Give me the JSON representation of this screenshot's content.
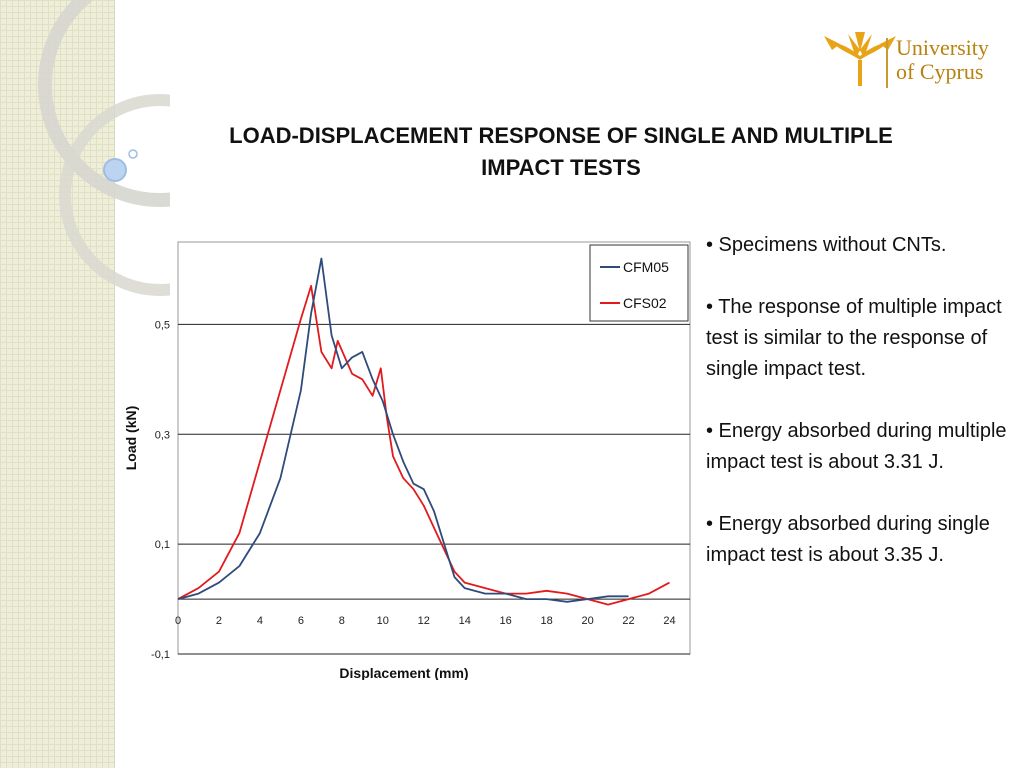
{
  "logo": {
    "line1": "University",
    "line2": "of Cyprus",
    "colors": {
      "gold": "#e8a317",
      "text": "#b8820f"
    }
  },
  "slide": {
    "title_line1": "LOAD-DISPLACEMENT RESPONSE OF SINGLE AND MULTIPLE",
    "title_line2": "IMPACT TESTS",
    "bullets": [
      "• Specimens without CNTs.",
      "• The response of multiple impact test is similar to the response of single impact test.",
      "• Energy absorbed during multiple impact test is about 3.31 J.",
      "• Energy absorbed during single impact test is about 3.35 J."
    ]
  },
  "chart_data": {
    "type": "line",
    "title": "",
    "xlabel": "Displacement (mm)",
    "ylabel": "Load (kN)",
    "xlim": [
      0,
      25
    ],
    "ylim": [
      -0.1,
      0.65
    ],
    "xticks": [
      0,
      2,
      4,
      6,
      8,
      10,
      12,
      14,
      16,
      18,
      20,
      22,
      24
    ],
    "yticks": [
      -0.1,
      0.1,
      0.3,
      0.5
    ],
    "ytick_labels": [
      "-0,1",
      "0,1",
      "0,3",
      "0,5"
    ],
    "grid": "horizontal at y-ticks",
    "legend": {
      "position": "top-right",
      "entries": [
        "CFM05",
        "CFS02"
      ]
    },
    "series": [
      {
        "name": "CFS02",
        "color": "#e31a1c",
        "x": [
          0,
          1,
          2,
          3,
          4,
          5,
          6,
          6.5,
          7,
          7.5,
          7.8,
          8.5,
          9,
          9.5,
          9.9,
          10.2,
          10.5,
          11,
          11.5,
          12,
          12.5,
          13,
          13.5,
          14,
          15,
          16,
          17,
          18,
          19,
          20,
          21,
          22,
          23,
          24
        ],
        "y": [
          0,
          0.02,
          0.05,
          0.12,
          0.25,
          0.38,
          0.51,
          0.57,
          0.45,
          0.42,
          0.47,
          0.41,
          0.4,
          0.37,
          0.42,
          0.33,
          0.26,
          0.22,
          0.2,
          0.17,
          0.13,
          0.09,
          0.05,
          0.03,
          0.02,
          0.01,
          0.01,
          0.015,
          0.01,
          0.0,
          -0.01,
          0.0,
          0.01,
          0.03
        ]
      },
      {
        "name": "CFM05",
        "color": "#2f4b7c",
        "x": [
          0,
          1,
          2,
          3,
          4,
          5,
          6,
          6.5,
          7,
          7.5,
          8,
          8.5,
          9,
          9.5,
          10,
          10.5,
          11,
          11.5,
          12,
          12.5,
          13,
          13.5,
          14,
          15,
          16,
          17,
          18,
          19,
          20,
          21,
          22
        ],
        "y": [
          0,
          0.01,
          0.03,
          0.06,
          0.12,
          0.22,
          0.38,
          0.52,
          0.62,
          0.48,
          0.42,
          0.44,
          0.45,
          0.4,
          0.36,
          0.3,
          0.25,
          0.21,
          0.2,
          0.16,
          0.1,
          0.04,
          0.02,
          0.01,
          0.01,
          0.0,
          0.0,
          -0.005,
          0.0,
          0.005,
          0.005
        ]
      }
    ]
  }
}
